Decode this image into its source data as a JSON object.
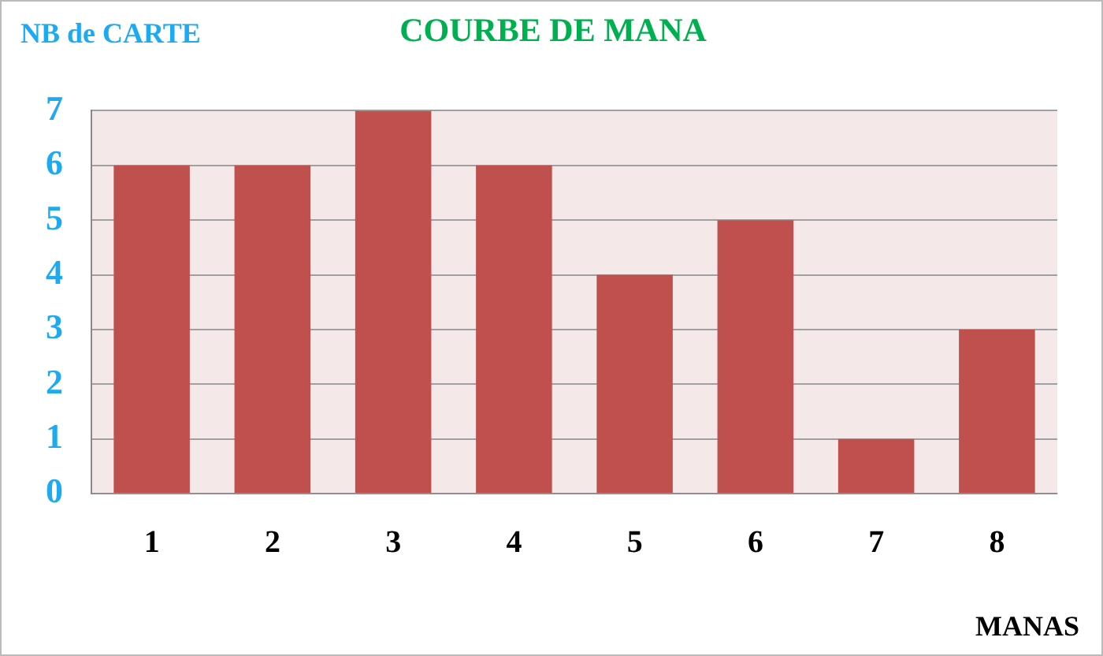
{
  "chart_data": {
    "type": "bar",
    "title": "COURBE DE MANA",
    "xlabel": "MANAS",
    "ylabel": "NB de CARTE",
    "categories": [
      "1",
      "2",
      "3",
      "4",
      "5",
      "6",
      "7",
      "8"
    ],
    "values": [
      6,
      6,
      7,
      6,
      4,
      5,
      1,
      3
    ],
    "color": "#c0504d",
    "ylim": [
      0,
      7
    ],
    "yticks": [
      0,
      1,
      2,
      3,
      4,
      5,
      6,
      7
    ],
    "grid": "y",
    "legend": false
  }
}
